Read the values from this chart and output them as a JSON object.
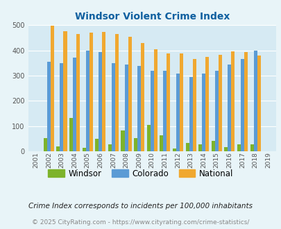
{
  "title": "Windsor Violent Crime Index",
  "years": [
    2001,
    2002,
    2003,
    2004,
    2005,
    2006,
    2007,
    2008,
    2009,
    2010,
    2011,
    2012,
    2013,
    2014,
    2015,
    2016,
    2017,
    2018,
    2019
  ],
  "windsor": [
    0,
    52,
    18,
    133,
    13,
    50,
    27,
    83,
    52,
    103,
    62,
    11,
    32,
    27,
    40,
    15,
    27,
    27,
    0
  ],
  "colorado": [
    0,
    354,
    349,
    372,
    398,
    394,
    348,
    345,
    338,
    320,
    320,
    308,
    295,
    308,
    320,
    344,
    365,
    399,
    0
  ],
  "national": [
    0,
    498,
    477,
    464,
    470,
    474,
    466,
    454,
    430,
    404,
    387,
    387,
    365,
    375,
    383,
    397,
    393,
    380,
    0
  ],
  "windsor_color": "#7db32b",
  "colorado_color": "#5b9bd5",
  "national_color": "#f0a830",
  "bg_color": "#e8f4f8",
  "plot_bg_color": "#d6eaf3",
  "title_color": "#1060a0",
  "grid_color": "#ffffff",
  "ylabel_max": 500,
  "yticks": [
    0,
    100,
    200,
    300,
    400,
    500
  ],
  "subtitle": "Crime Index corresponds to incidents per 100,000 inhabitants",
  "footer": "© 2025 CityRating.com - https://www.cityrating.com/crime-statistics/",
  "legend_labels": [
    "Windsor",
    "Colorado",
    "National"
  ],
  "bar_width": 0.27
}
